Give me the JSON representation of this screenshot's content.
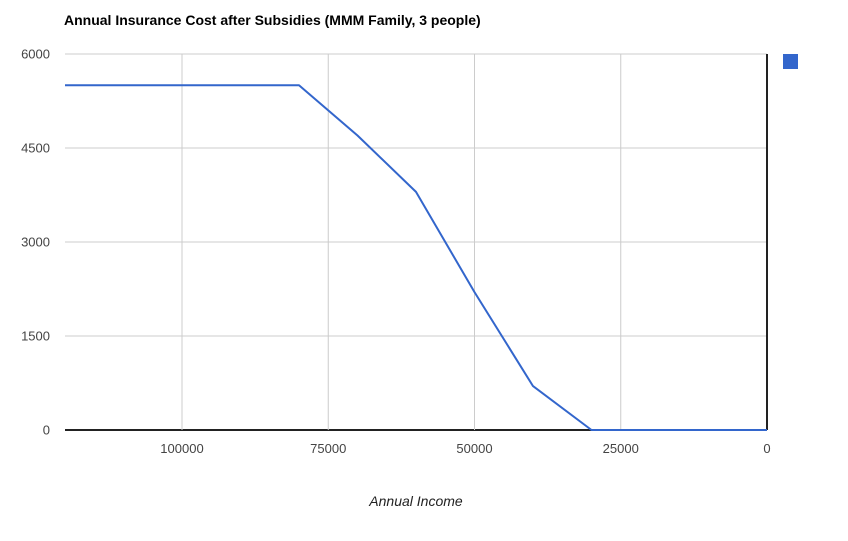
{
  "page": {
    "background": "#ffffff"
  },
  "chart_data": {
    "type": "line",
    "title": "Annual Insurance Cost after Subsidies (MMM Family, 3 people)",
    "xlabel": "Annual Income",
    "ylabel": "",
    "x_reversed": true,
    "xlim": [
      120000,
      0
    ],
    "ylim": [
      0,
      6000
    ],
    "xticks": [
      100000,
      75000,
      50000,
      25000,
      0
    ],
    "yticks": [
      0,
      1500,
      3000,
      4500,
      6000
    ],
    "grid": true,
    "legend_position": "top-right",
    "legend": {
      "swatch_color": "#3366cc",
      "label": ""
    },
    "series": [
      {
        "color": "#3366cc",
        "x": [
          120000,
          110000,
          100000,
          90000,
          80000,
          70000,
          60000,
          50000,
          40000,
          30000,
          20000,
          10000,
          0
        ],
        "values": [
          5500,
          5500,
          5500,
          5500,
          5500,
          4700,
          3800,
          2200,
          700,
          0,
          0,
          0,
          0
        ]
      }
    ],
    "colors": {
      "grid": "#cccccc",
      "axis": "#222222",
      "tick_label": "#444444",
      "title": "#000000"
    }
  }
}
